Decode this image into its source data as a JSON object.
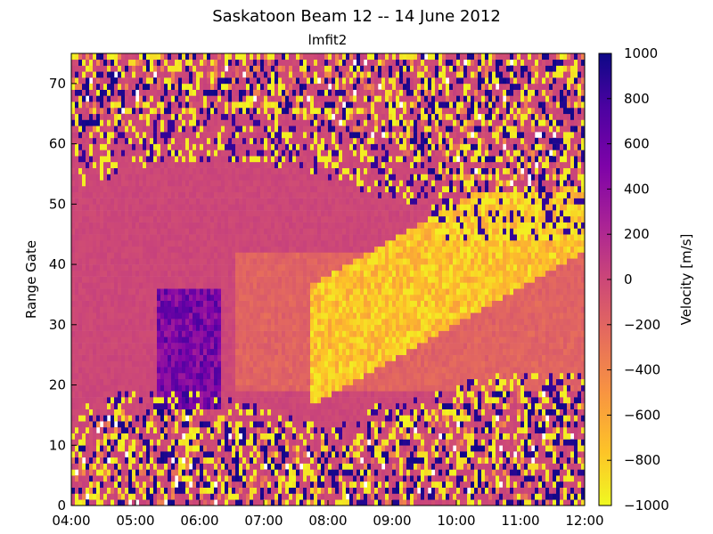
{
  "chart_data": {
    "type": "heatmap",
    "title": "Saskatoon Beam 12 -- 14 June 2012",
    "subtitle": "lmfit2",
    "xlabel": "",
    "ylabel": "Range Gate",
    "colorbar_label": "Velocity [m/s]",
    "x_tick_labels": [
      "04:00",
      "05:00",
      "06:00",
      "07:00",
      "08:00",
      "09:00",
      "10:00",
      "11:00",
      "12:00"
    ],
    "y_ticks": [
      0,
      10,
      20,
      30,
      40,
      50,
      60,
      70
    ],
    "cbar_ticks": [
      1000,
      800,
      600,
      400,
      200,
      0,
      -200,
      -400,
      -600,
      -800,
      -1000
    ],
    "xlim_hours": [
      4,
      12
    ],
    "ylim": [
      0,
      75
    ],
    "clim": [
      -1000,
      1000
    ],
    "colormap": "plasma_r",
    "colors": {
      "high": "#0d0887",
      "mid": "#cc4778",
      "low": "#f0f921"
    },
    "regions": [
      {
        "name": "near-range noise",
        "gates": [
          0,
          14
        ],
        "hours": [
          4,
          12
        ],
        "velocity": "random"
      },
      {
        "name": "far-range noise",
        "gates": [
          60,
          75
        ],
        "hours": [
          4,
          12
        ],
        "velocity": "random"
      },
      {
        "name": "ground scatter band",
        "gates": [
          14,
          55
        ],
        "hours": [
          4,
          12
        ],
        "velocity": 0
      },
      {
        "name": "purple patch",
        "gates": [
          15,
          35
        ],
        "hours": [
          5.3,
          6.2
        ],
        "velocity": 500
      },
      {
        "name": "yellow arc",
        "gates": [
          22,
          45
        ],
        "hours": [
          7.7,
          11.8
        ],
        "velocity": -700
      }
    ]
  }
}
